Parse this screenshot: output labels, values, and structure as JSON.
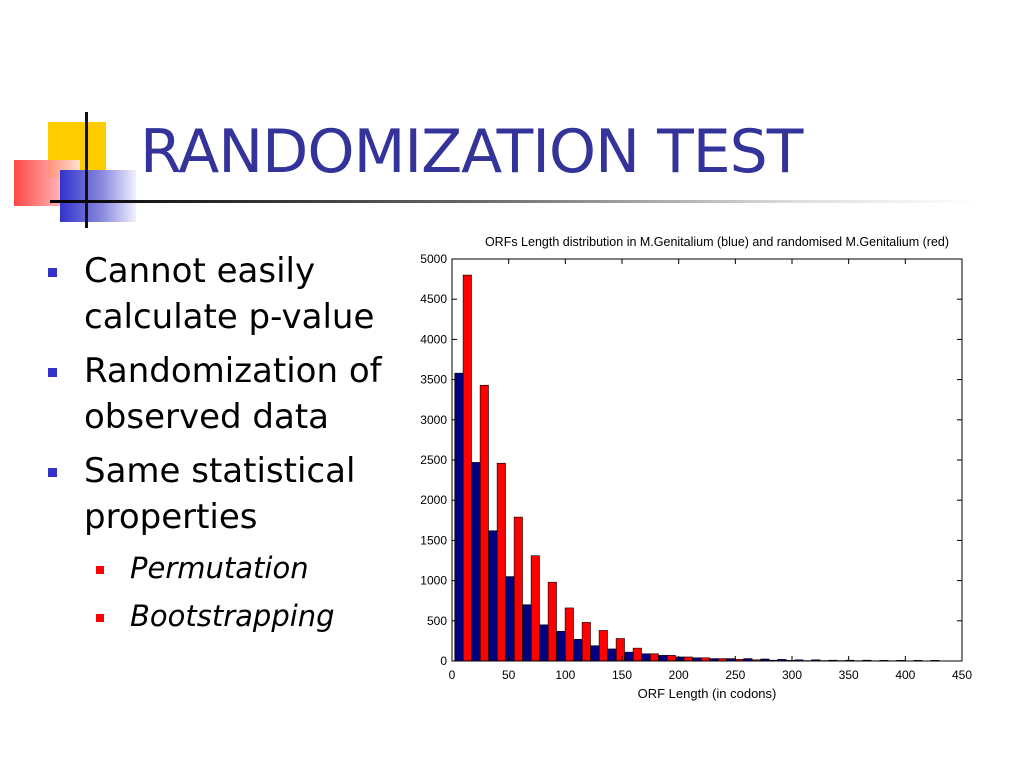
{
  "slide": {
    "title": "RANDOMIZATION TEST",
    "bullets": [
      {
        "text": "Cannot easily calculate p-value"
      },
      {
        "text": "Randomization of observed data"
      },
      {
        "text": "Same statistical properties"
      }
    ],
    "sub_bullets": [
      {
        "text": "Permutation"
      },
      {
        "text": "Bootstrapping"
      }
    ],
    "colors": {
      "title": "#333399",
      "bullet": "#3333cc",
      "sub_bullet": "#ff0000"
    }
  },
  "chart_data": {
    "type": "bar",
    "title": "ORFs Length distribution in M.Genitalium (blue) and randomised M.Genitalium (red)",
    "xlabel": "ORF Length (in codons)",
    "ylabel": "",
    "xlim": [
      0,
      450
    ],
    "ylim": [
      0,
      5000
    ],
    "xticks": [
      0,
      50,
      100,
      150,
      200,
      250,
      300,
      350,
      400,
      450
    ],
    "yticks": [
      0,
      500,
      1000,
      1500,
      2000,
      2500,
      3000,
      3500,
      4000,
      4500,
      5000
    ],
    "x": [
      10,
      25,
      40,
      55,
      70,
      85,
      100,
      115,
      130,
      145,
      160,
      175,
      190,
      205,
      220,
      235,
      250,
      265,
      280,
      295,
      310,
      325,
      340,
      355,
      370,
      385,
      400,
      415,
      430
    ],
    "series": [
      {
        "name": "M.Genitalium (blue)",
        "color": "#000080",
        "values": [
          3580,
          2470,
          1620,
          1050,
          700,
          450,
          370,
          270,
          190,
          150,
          110,
          90,
          70,
          50,
          40,
          30,
          30,
          30,
          25,
          20,
          15,
          15,
          10,
          10,
          10,
          8,
          8,
          8,
          8
        ]
      },
      {
        "name": "randomised M.Genitalium (red)",
        "color": "#ff0000",
        "values": [
          4800,
          3430,
          2460,
          1790,
          1310,
          980,
          660,
          480,
          380,
          280,
          160,
          90,
          70,
          50,
          40,
          30,
          20,
          15,
          10,
          8,
          5,
          5,
          5,
          4,
          3,
          3,
          2,
          2,
          2
        ]
      }
    ],
    "grid": false
  }
}
